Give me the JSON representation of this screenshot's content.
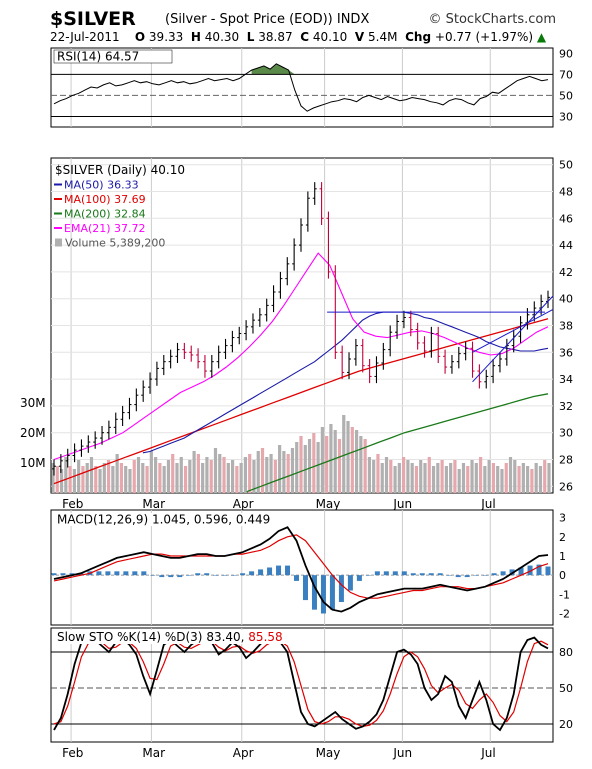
{
  "header": {
    "title": "$SILVER",
    "subtitle": "(Silver - Spot Price (EOD)) INDX",
    "attribution": "© StockCharts.com",
    "date": "22-Jul-2011",
    "open_label": "O",
    "open": "39.33",
    "high_label": "H",
    "high": "40.30",
    "low_label": "L",
    "low": "38.87",
    "close_label": "C",
    "close": "40.10",
    "volume_label": "V",
    "volume": "5.4M",
    "chg_label": "Chg",
    "chg": "+0.77 (+1.97%)",
    "up_arrow": "▲"
  },
  "colors": {
    "price_up": "#000000",
    "price_down": "#c0003a",
    "ma50": "#1a1aa8",
    "ma100": "#e00000",
    "ma200": "#1a7a1a",
    "ema21": "#ff00ff",
    "volume_up": "#b0b0b0",
    "volume_down": "#e6a8ad",
    "rsi_fill": "#5a8a4a",
    "macd_hist": "#3a7fc0",
    "signal": "#e00000",
    "trendline": "#1a1acc"
  },
  "chart_data": {
    "type": "line",
    "x_labels": [
      "Feb",
      "Mar",
      "Apr",
      "May",
      "Jun",
      "Jul"
    ],
    "rsi": {
      "legend": "RSI(14) 64.57",
      "yticks": [
        "90",
        "70",
        "50",
        "30"
      ],
      "ylim": [
        20,
        95
      ],
      "values": [
        42,
        45,
        47,
        50,
        52,
        55,
        58,
        57,
        60,
        62,
        59,
        60,
        62,
        64,
        62,
        63,
        61,
        60,
        62,
        64,
        62,
        63,
        61,
        62,
        64,
        66,
        64,
        65,
        66,
        64,
        66,
        70,
        74,
        76,
        78,
        75,
        80,
        77,
        74,
        55,
        40,
        35,
        38,
        40,
        42,
        44,
        45,
        47,
        46,
        44,
        48,
        50,
        48,
        46,
        49,
        47,
        45,
        46,
        48,
        47,
        46,
        44,
        43,
        41,
        45,
        47,
        46,
        43,
        41,
        47,
        49,
        53,
        52,
        56,
        60,
        64,
        66,
        68,
        66,
        64,
        65
      ]
    },
    "price": {
      "legend": [
        "$SILVER (Daily) 40.10",
        "MA(50) 36.33",
        "MA(100) 37.69",
        "MA(200) 32.84",
        "EMA(21) 37.72",
        "Volume 5,389,200"
      ],
      "yticks": [
        "50",
        "48",
        "46",
        "44",
        "42",
        "40",
        "38",
        "36",
        "34",
        "32",
        "30",
        "28",
        "26"
      ],
      "ylim": [
        25.5,
        50.5
      ],
      "volume_ticks": [
        "30M",
        "20M",
        "10M"
      ],
      "close": [
        27.5,
        27.9,
        28.3,
        28.7,
        29.0,
        29.3,
        29.6,
        30.0,
        30.4,
        31.0,
        31.5,
        32.1,
        32.8,
        33.4,
        34.0,
        34.8,
        35.3,
        35.7,
        36.2,
        36.0,
        35.8,
        35.3,
        34.6,
        35.3,
        36.0,
        36.5,
        37.1,
        37.4,
        37.9,
        38.4,
        38.8,
        39.5,
        40.5,
        41.5,
        42.6,
        44.0,
        45.5,
        47.5,
        48.2,
        46.0,
        42.0,
        36.0,
        34.5,
        35.5,
        36.5,
        35.0,
        34.2,
        35.2,
        36.2,
        37.5,
        38.3,
        38.6,
        37.7,
        36.7,
        36.1,
        37.4,
        35.7,
        34.9,
        35.3,
        35.9,
        36.3,
        34.6,
        33.8,
        34.2,
        35.0,
        35.5,
        36.5,
        37.2,
        38.2,
        38.8,
        39.3,
        39.8,
        40.1
      ],
      "ma50": [
        28.5,
        28.6,
        28.8,
        29.0,
        29.2,
        29.4,
        29.6,
        29.9,
        30.2,
        30.5,
        30.8,
        31.1,
        31.4,
        31.7,
        32.0,
        32.3,
        32.6,
        32.9,
        33.2,
        33.5,
        33.8,
        34.1,
        34.4,
        34.7,
        35.0,
        35.3,
        35.7,
        36.1,
        36.5,
        36.9,
        37.4,
        37.9,
        38.4,
        38.7,
        38.9,
        39.0,
        39.0,
        39.0,
        39.0,
        38.9,
        38.8,
        38.6,
        38.5,
        38.3,
        38.1,
        37.9,
        37.7,
        37.5,
        37.3,
        37.1,
        36.8,
        36.6,
        36.4,
        36.3,
        36.2,
        36.1,
        36.1,
        36.1,
        36.2,
        36.3
      ],
      "ma100": [
        26.2,
        26.6,
        27.0,
        27.4,
        27.8,
        28.2,
        28.6,
        29.0,
        29.4,
        29.8,
        30.2,
        30.6,
        31.0,
        31.4,
        31.8,
        32.2,
        32.6,
        33.0,
        33.4,
        33.8,
        34.2,
        34.6,
        34.9,
        35.2,
        35.5,
        35.8,
        36.1,
        36.4,
        36.7,
        37.0,
        37.3,
        37.6,
        37.9,
        38.2,
        38.5
      ],
      "ma200": [
        25.6,
        26.0,
        26.4,
        26.8,
        27.2,
        27.6,
        28.0,
        28.4,
        28.8,
        29.2,
        29.6,
        30.0,
        30.3,
        30.6,
        30.9,
        31.2,
        31.5,
        31.8,
        32.1,
        32.4,
        32.7,
        32.9
      ],
      "ema21": [
        28.0,
        28.3,
        28.6,
        28.9,
        29.2,
        29.6,
        30.0,
        30.6,
        31.2,
        31.8,
        32.4,
        33.0,
        33.4,
        33.8,
        34.3,
        34.9,
        35.6,
        36.4,
        37.3,
        38.3,
        39.5,
        40.8,
        42.1,
        43.4,
        42.5,
        40.5,
        38.5,
        37.5,
        37.2,
        37.1,
        37.3,
        37.5,
        37.6,
        37.4,
        37.1,
        36.7,
        36.3,
        36.0,
        35.8,
        35.9,
        36.3,
        36.9,
        37.5,
        37.9
      ]
    },
    "volume": [
      10,
      9,
      8,
      12,
      9,
      8,
      11,
      9,
      10,
      12,
      9,
      8,
      10,
      11,
      9,
      13,
      10,
      9,
      8,
      11,
      12,
      10,
      9,
      14,
      12,
      10,
      9,
      11,
      13,
      10,
      12,
      9,
      11,
      14,
      13,
      10,
      12,
      11,
      15,
      13,
      12,
      10,
      11,
      9,
      10,
      12,
      13,
      11,
      14,
      15,
      12,
      13,
      11,
      16,
      14,
      13,
      15,
      17,
      19,
      16,
      18,
      20,
      17,
      22,
      19,
      23,
      21,
      18,
      26,
      24,
      22,
      21,
      19,
      18,
      12,
      11,
      13,
      10,
      12,
      11,
      9,
      10,
      12,
      11,
      10,
      9,
      11,
      10,
      12,
      9,
      10,
      11,
      9,
      10,
      11,
      8,
      10,
      9,
      11,
      10,
      12,
      9,
      11,
      10,
      9,
      8,
      10,
      12,
      11,
      9,
      10,
      9,
      8,
      10,
      9,
      11,
      10
    ],
    "macd": {
      "legend": "MACD(12,26,9) 1.045, 0.596, 0.449",
      "yticks": [
        "3",
        "2",
        "1",
        "0",
        "-1",
        "-2"
      ],
      "ylim": [
        -2.6,
        3.4
      ],
      "macd": [
        -0.2,
        -0.1,
        0.0,
        0.1,
        0.3,
        0.5,
        0.7,
        0.9,
        1.0,
        1.1,
        1.2,
        1.1,
        1.0,
        0.9,
        0.9,
        1.0,
        1.1,
        1.1,
        1.0,
        1.0,
        1.1,
        1.2,
        1.4,
        1.6,
        1.9,
        2.3,
        2.5,
        1.8,
        0.5,
        -0.6,
        -1.4,
        -1.8,
        -1.9,
        -1.7,
        -1.4,
        -1.2,
        -1.0,
        -0.9,
        -0.8,
        -0.7,
        -0.7,
        -0.7,
        -0.6,
        -0.5,
        -0.6,
        -0.7,
        -0.8,
        -0.7,
        -0.6,
        -0.4,
        -0.2,
        0.1,
        0.4,
        0.7,
        1.0,
        1.05
      ],
      "signal": [
        -0.3,
        -0.2,
        -0.1,
        0.0,
        0.1,
        0.3,
        0.5,
        0.7,
        0.8,
        0.9,
        1.0,
        1.1,
        1.1,
        1.0,
        1.0,
        1.0,
        1.0,
        1.0,
        1.0,
        1.0,
        1.1,
        1.1,
        1.2,
        1.3,
        1.5,
        1.8,
        2.0,
        2.1,
        1.8,
        1.2,
        0.6,
        0.0,
        -0.5,
        -0.9,
        -1.1,
        -1.2,
        -1.2,
        -1.1,
        -1.0,
        -0.9,
        -0.8,
        -0.8,
        -0.7,
        -0.6,
        -0.6,
        -0.6,
        -0.7,
        -0.7,
        -0.6,
        -0.5,
        -0.4,
        -0.2,
        0.0,
        0.2,
        0.45,
        0.6
      ]
    },
    "stochastic": {
      "legend_prefix": "Slow STO %K(14) %D(3)",
      "k_value": "83.40",
      "d_value": "85.58",
      "yticks": [
        "80",
        "50",
        "20"
      ],
      "ylim": [
        5,
        100
      ],
      "k": [
        15,
        25,
        45,
        70,
        88,
        92,
        90,
        85,
        80,
        88,
        91,
        86,
        78,
        60,
        45,
        65,
        86,
        90,
        85,
        80,
        86,
        90,
        92,
        88,
        78,
        82,
        88,
        84,
        75,
        80,
        86,
        92,
        90,
        88,
        80,
        55,
        30,
        20,
        18,
        22,
        26,
        30,
        24,
        20,
        16,
        18,
        22,
        28,
        40,
        60,
        80,
        82,
        78,
        70,
        50,
        40,
        45,
        60,
        55,
        35,
        25,
        40,
        55,
        40,
        20,
        15,
        25,
        45,
        80,
        90,
        92,
        86,
        83
      ],
      "d": [
        20,
        22,
        35,
        55,
        76,
        87,
        90,
        88,
        83,
        84,
        88,
        88,
        83,
        72,
        58,
        57,
        70,
        85,
        88,
        84,
        83,
        86,
        89,
        89,
        84,
        81,
        84,
        85,
        81,
        79,
        81,
        86,
        89,
        89,
        85,
        72,
        52,
        32,
        22,
        20,
        22,
        26,
        26,
        24,
        20,
        18,
        19,
        23,
        31,
        45,
        62,
        76,
        80,
        76,
        66,
        52,
        46,
        50,
        53,
        48,
        37,
        33,
        40,
        45,
        38,
        27,
        22,
        30,
        50,
        72,
        87,
        89,
        86
      ]
    }
  }
}
